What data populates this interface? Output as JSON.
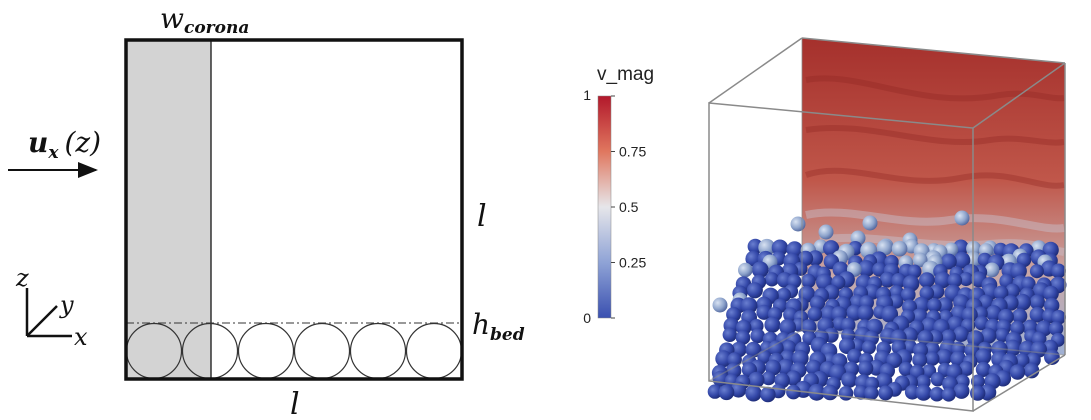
{
  "schematic": {
    "corona_label_main": "w",
    "corona_label_sub": "corona",
    "inflow_label": "u",
    "inflow_sub": "x",
    "inflow_arg": "(z)",
    "side_length_label": "l",
    "bottom_length_label": "l",
    "bed_label_main": "h",
    "bed_label_sub": "bed",
    "axis_z": "z",
    "axis_y": "y",
    "axis_x": "x",
    "sphere_count": 6
  },
  "colorbar": {
    "title": "v_mag",
    "ticks": [
      "1",
      "0.75",
      "0.5",
      "0.25",
      "0"
    ],
    "colors": {
      "top": "#b2182b",
      "mid": "#e6e6ea",
      "bottom": "#3a50b0"
    }
  },
  "render_3d": {
    "particle_color": "#3347a8",
    "fluid_top_color": "#a5302c"
  }
}
